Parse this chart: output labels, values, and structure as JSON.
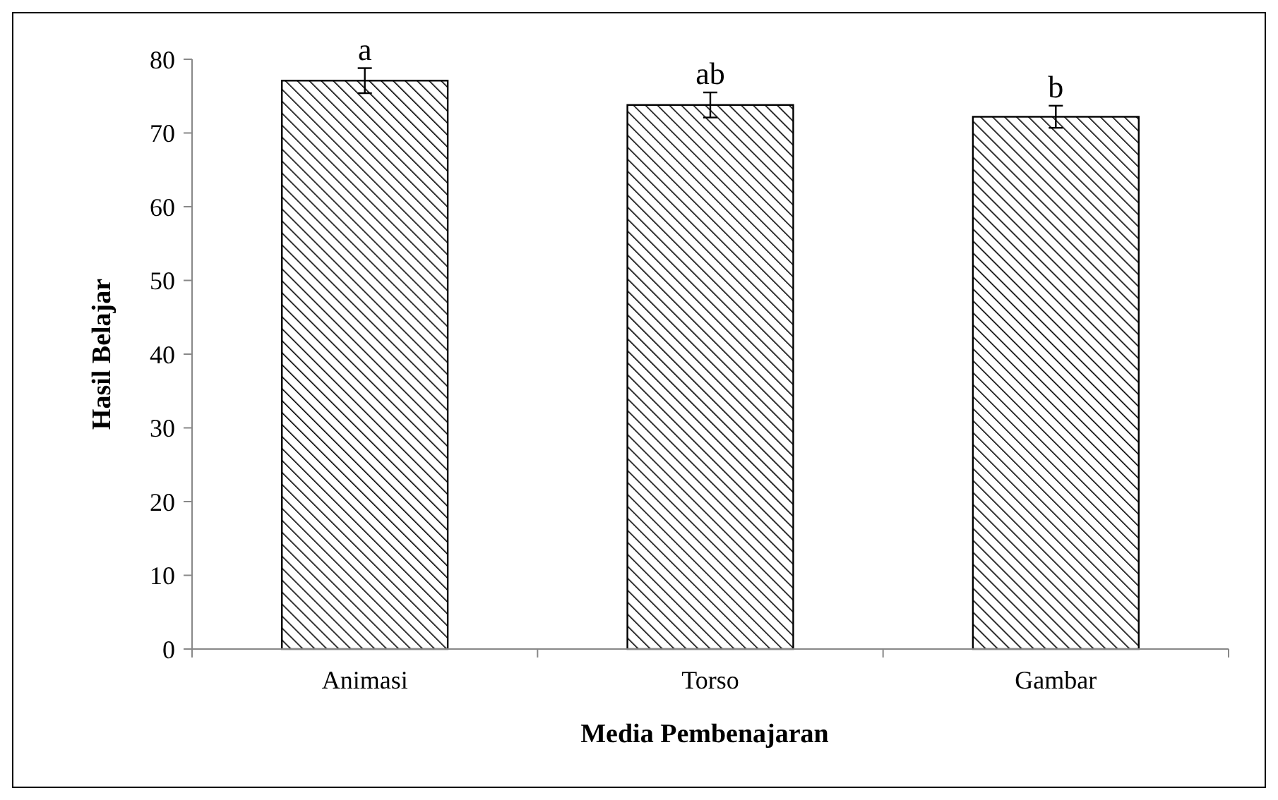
{
  "chart_data": {
    "type": "bar",
    "xlabel": "Media Pembenajaran",
    "ylabel": "Hasil Belajar",
    "categories": [
      "Animasi",
      "Torso",
      "Gambar"
    ],
    "values": [
      77.1,
      73.8,
      72.2
    ],
    "errors": [
      1.7,
      1.7,
      1.5
    ],
    "color": "#000000",
    "ylim": [
      0,
      80
    ],
    "yticks": [
      0,
      10,
      20,
      30,
      40,
      50,
      60,
      70,
      80
    ],
    "grid": false,
    "annotations": [
      {
        "text": "a",
        "x": "Animasi",
        "y": 78.8
      },
      {
        "text": "ab",
        "x": "Torso",
        "y": 75.5
      },
      {
        "text": "b",
        "x": "Gambar",
        "y": 73.7
      }
    ]
  }
}
